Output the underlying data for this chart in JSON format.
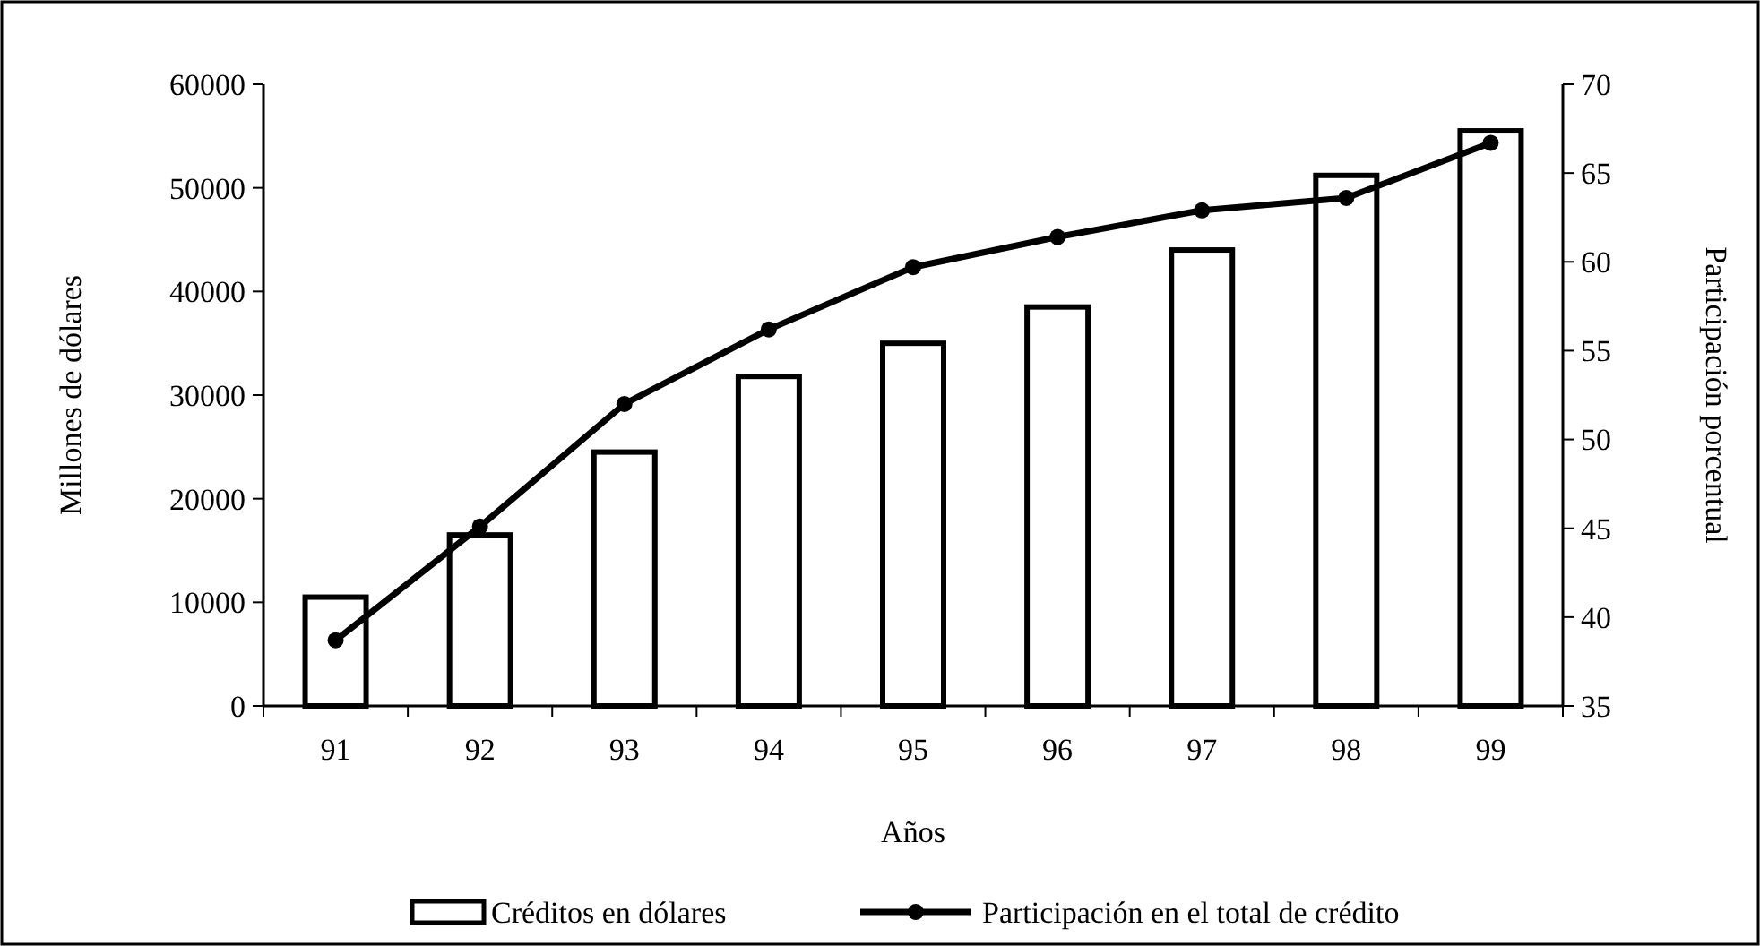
{
  "chart_data": {
    "type": "bar",
    "xlabel": "Años",
    "ylabel": "Millones de dólares",
    "y2label": "Participación porcentual",
    "categories": [
      "91",
      "92",
      "93",
      "94",
      "95",
      "96",
      "97",
      "98",
      "99"
    ],
    "series": [
      {
        "name": "Créditos en dólares",
        "color": "#ffffff",
        "values": [
          10500,
          16500,
          24500,
          31800,
          35000,
          38500,
          44000,
          51200,
          55500
        ]
      },
      {
        "name": "Participación en el total de crédito",
        "type": "line",
        "axis": "y2",
        "color": "#000000",
        "marker": "circle",
        "values": [
          38.7,
          45.1,
          52.0,
          56.2,
          59.7,
          61.4,
          62.9,
          63.6,
          66.7
        ]
      }
    ],
    "ylim": [
      0,
      60000
    ],
    "yticks": [
      0,
      10000,
      20000,
      30000,
      40000,
      50000,
      60000
    ],
    "y2lim": [
      35,
      70
    ],
    "y2ticks": [
      35,
      40,
      45,
      50,
      55,
      60,
      65,
      70
    ],
    "grid": false,
    "legend": "bottom"
  }
}
